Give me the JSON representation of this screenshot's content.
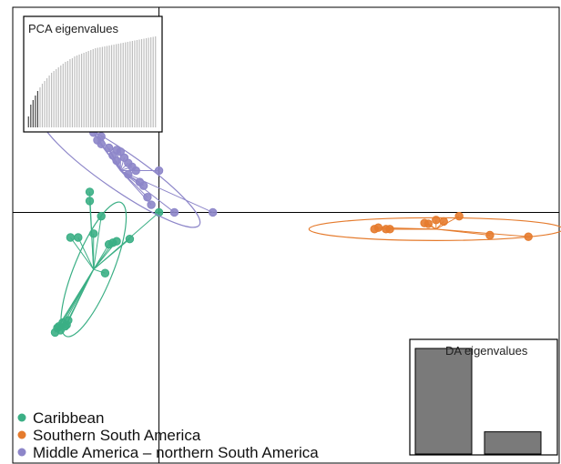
{
  "chart_data": {
    "type": "scatter",
    "title": "",
    "xlabel": "",
    "ylabel": "",
    "xlim": [
      -1.9,
      5.2
    ],
    "ylim": [
      -3.3,
      2.7
    ],
    "axes_lines": {
      "x": 0,
      "y": 0
    },
    "legend_position": "bottom-left",
    "series": [
      {
        "name": "Caribbean",
        "color": "#3BAF85",
        "centroid": [
          -0.85,
          -0.75
        ],
        "ellipse": {
          "cx": -0.85,
          "cy": -0.75,
          "rx": 0.95,
          "ry": 0.25,
          "angle_deg": 68
        },
        "points": [
          [
            -0.9,
            0.27
          ],
          [
            -0.9,
            0.15
          ],
          [
            -0.75,
            -0.05
          ],
          [
            0.0,
            0.0
          ],
          [
            -1.15,
            -0.33
          ],
          [
            -1.05,
            -0.33
          ],
          [
            -0.85,
            -0.28
          ],
          [
            -0.65,
            -0.42
          ],
          [
            -0.6,
            -0.4
          ],
          [
            -0.55,
            -0.38
          ],
          [
            -0.38,
            -0.35
          ],
          [
            -0.7,
            -0.8
          ],
          [
            -1.25,
            -1.45
          ],
          [
            -1.2,
            -1.48
          ],
          [
            -1.18,
            -1.42
          ],
          [
            -1.32,
            -1.52
          ],
          [
            -1.28,
            -1.55
          ],
          [
            -1.22,
            -1.5
          ],
          [
            -1.35,
            -1.58
          ],
          [
            -1.3,
            -1.5
          ]
        ]
      },
      {
        "name": "Southern South America",
        "color": "#E57B2D",
        "centroid": [
          3.6,
          -0.22
        ],
        "ellipse": {
          "cx": 3.6,
          "cy": -0.22,
          "rx": 1.65,
          "ry": 0.15,
          "angle_deg": 0
        },
        "points": [
          [
            3.9,
            -0.05
          ],
          [
            3.7,
            -0.12
          ],
          [
            3.5,
            -0.15
          ],
          [
            3.45,
            -0.14
          ],
          [
            3.6,
            -0.1
          ],
          [
            3.0,
            -0.22
          ],
          [
            2.95,
            -0.22
          ],
          [
            2.85,
            -0.2
          ],
          [
            2.8,
            -0.22
          ],
          [
            4.3,
            -0.3
          ],
          [
            4.8,
            -0.32
          ]
        ]
      },
      {
        "name": "Middle America – northern South America",
        "color": "#8D86C9",
        "centroid": [
          -0.5,
          0.55
        ],
        "ellipse": {
          "cx": -0.5,
          "cy": 0.55,
          "rx": 1.25,
          "ry": 0.25,
          "angle_deg": -35
        },
        "points": [
          [
            -0.85,
            1.05
          ],
          [
            -0.75,
            1.0
          ],
          [
            -0.8,
            0.95
          ],
          [
            -0.75,
            0.9
          ],
          [
            -0.65,
            0.85
          ],
          [
            -0.55,
            0.82
          ],
          [
            -0.5,
            0.8
          ],
          [
            -0.6,
            0.75
          ],
          [
            -0.45,
            0.72
          ],
          [
            -0.4,
            0.65
          ],
          [
            -0.55,
            0.68
          ],
          [
            -0.35,
            0.6
          ],
          [
            -0.3,
            0.55
          ],
          [
            -0.4,
            0.5
          ],
          [
            -0.25,
            0.4
          ],
          [
            -0.2,
            0.35
          ],
          [
            -0.15,
            0.2
          ],
          [
            -0.1,
            0.1
          ],
          [
            0.0,
            0.55
          ],
          [
            0.2,
            0.0
          ],
          [
            0.7,
            0.0
          ]
        ]
      }
    ],
    "insets": [
      {
        "title": "PCA eigenvalues",
        "type": "bar",
        "values": [
          0.12,
          0.25,
          0.3,
          0.35,
          0.4,
          0.44,
          0.48,
          0.51,
          0.54,
          0.57,
          0.6,
          0.62,
          0.64,
          0.66,
          0.68,
          0.7,
          0.72,
          0.73,
          0.75,
          0.76,
          0.78,
          0.79,
          0.8,
          0.81,
          0.82,
          0.83,
          0.84,
          0.85,
          0.86,
          0.87,
          0.875,
          0.88,
          0.885,
          0.89,
          0.895,
          0.9,
          0.905,
          0.91,
          0.915,
          0.92,
          0.925,
          0.93,
          0.935,
          0.94,
          0.945,
          0.95,
          0.955,
          0.96,
          0.965,
          0.97,
          0.975,
          0.98,
          0.985,
          0.99,
          0.995,
          1.0
        ],
        "highlighted_count": 5
      },
      {
        "title": "DA eigenvalues",
        "type": "bar",
        "values": [
          1.0,
          0.21
        ]
      }
    ]
  }
}
